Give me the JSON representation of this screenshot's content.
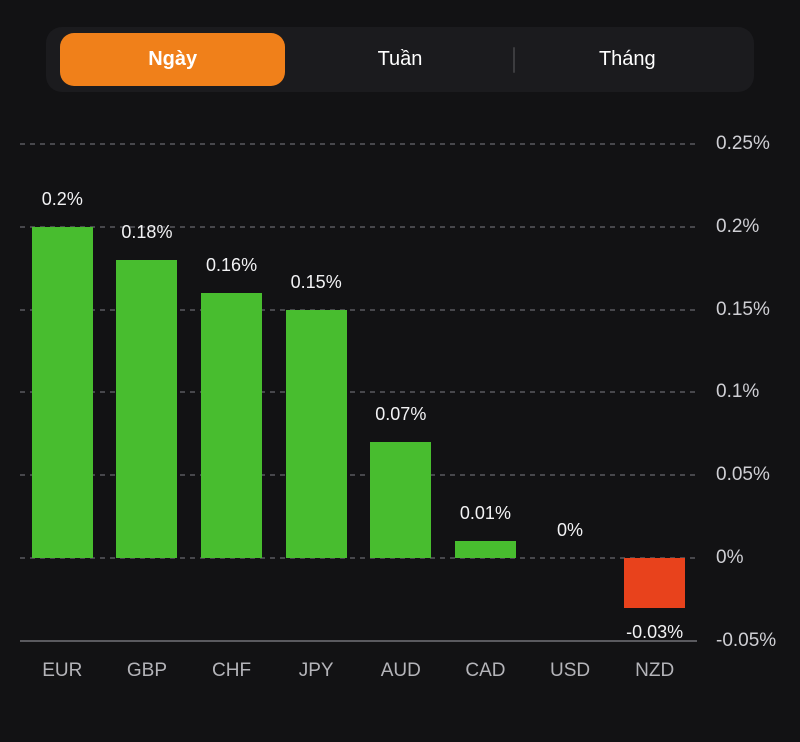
{
  "tabs": {
    "items": [
      {
        "label": "Ngày",
        "selected": true
      },
      {
        "label": "Tuần",
        "selected": false
      },
      {
        "label": "Tháng",
        "selected": false
      }
    ]
  },
  "colors": {
    "background": "#121214",
    "control_background": "#1B1B1E",
    "accent_orange": "#F0801A",
    "positive_green": "#48BD2F",
    "negative_red": "#E8421C",
    "gridline": "#47474C",
    "axis_line": "#5A5A5F",
    "axis_label": "#CFCFD4",
    "category_label": "#B4B4B9",
    "value_label": "#F2F2F4"
  },
  "chart_data": {
    "type": "bar",
    "title": "",
    "xlabel": "",
    "ylabel": "",
    "unit": "%",
    "grid": true,
    "legend": false,
    "axis_side": "right",
    "categories": [
      "EUR",
      "GBP",
      "CHF",
      "JPY",
      "AUD",
      "CAD",
      "USD",
      "NZD"
    ],
    "values": [
      0.2,
      0.18,
      0.16,
      0.15,
      0.07,
      0.01,
      0,
      -0.03
    ],
    "value_labels": [
      "0.2%",
      "0.18%",
      "0.16%",
      "0.15%",
      "0.07%",
      "0.01%",
      "0%",
      "-0.03%"
    ],
    "y_ticks": [
      0.25,
      0.2,
      0.15,
      0.1,
      0.05,
      0,
      -0.05
    ],
    "y_tick_labels": [
      "0.25%",
      "0.2%",
      "0.15%",
      "0.1%",
      "0.05%",
      "0%",
      "-0.05%"
    ],
    "ylim": [
      -0.05,
      0.25
    ]
  }
}
